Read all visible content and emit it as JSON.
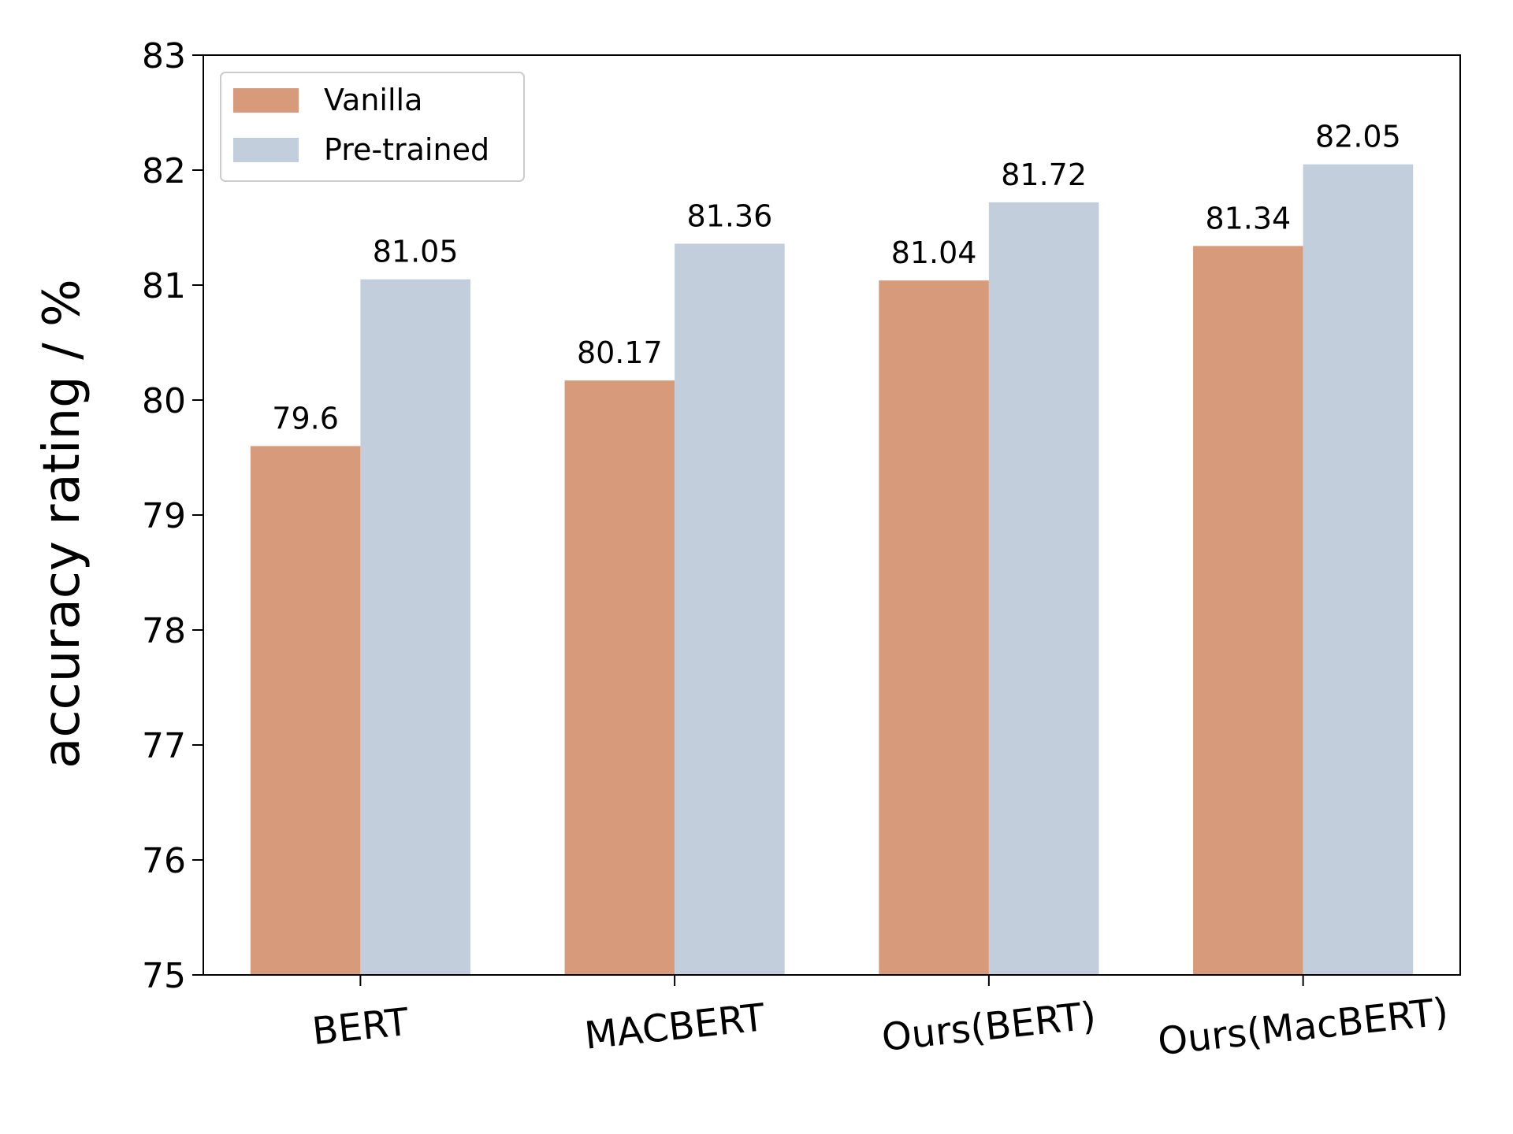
{
  "chart_data": {
    "type": "bar",
    "categories": [
      "BERT",
      "MACBERT",
      "Ours(BERT)",
      "Ours(MacBERT)"
    ],
    "series": [
      {
        "name": "Vanilla",
        "values": [
          79.6,
          80.17,
          81.04,
          81.34
        ],
        "color": "#d79b7b",
        "value_labels": [
          "79.6",
          "80.17",
          "81.04",
          "81.34"
        ]
      },
      {
        "name": "Pre-trained",
        "values": [
          81.05,
          81.36,
          81.72,
          82.05
        ],
        "color": "#c2cedc",
        "value_labels": [
          "81.05",
          "81.36",
          "81.72",
          "82.05"
        ]
      }
    ],
    "title": "",
    "xlabel": "",
    "ylabel": "accuracy rating / %",
    "ylim": [
      75,
      83
    ],
    "yticks": [
      "75",
      "76",
      "77",
      "78",
      "79",
      "80",
      "81",
      "82",
      "83"
    ],
    "grid": false,
    "legend_position": "top-left",
    "xtick_rotation": "slight"
  }
}
